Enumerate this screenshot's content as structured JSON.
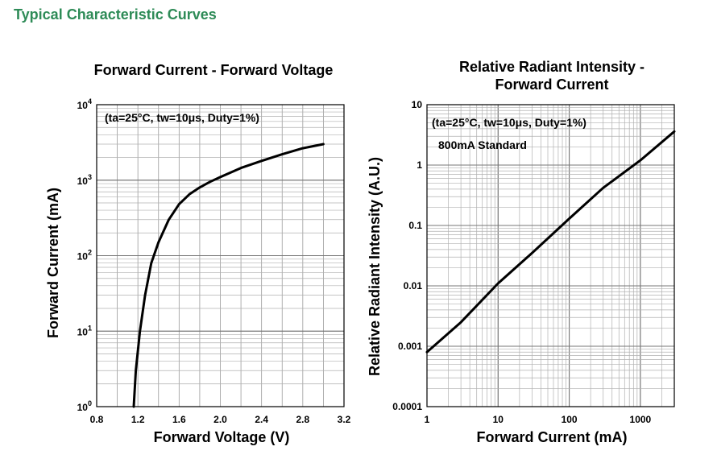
{
  "page": {
    "section_title": "Typical Characteristic Curves"
  },
  "chart_data": [
    {
      "type": "line",
      "title": "Forward Current - Forward Voltage",
      "annotation": "(ta=25°C, tw=10μs, Duty=1%)",
      "xlabel": "Forward Voltage (V)",
      "ylabel": "Forward Current (mA)",
      "xlim": [
        0.8,
        3.2
      ],
      "ylim": [
        1,
        10000
      ],
      "yscale": "log",
      "grid": true,
      "xticks": [
        "0.8",
        "1.2",
        "1.6",
        "2.0",
        "2.4",
        "2.8",
        "3.2"
      ],
      "yticks": [
        {
          "base": "10",
          "exp": "0"
        },
        {
          "base": "10",
          "exp": "1"
        },
        {
          "base": "10",
          "exp": "2"
        },
        {
          "base": "10",
          "exp": "3"
        },
        {
          "base": "10",
          "exp": "4"
        }
      ],
      "series": [
        {
          "x": [
            1.16,
            1.18,
            1.22,
            1.27,
            1.33,
            1.4,
            1.5,
            1.6,
            1.7,
            1.8,
            1.9,
            2.0,
            2.2,
            2.4,
            2.6,
            2.8,
            3.0
          ],
          "y": [
            1,
            3,
            10,
            30,
            80,
            150,
            300,
            480,
            650,
            800,
            950,
            1100,
            1450,
            1800,
            2200,
            2650,
            3000
          ]
        }
      ]
    },
    {
      "type": "line",
      "title": "Relative Radiant Intensity - Forward Current",
      "title_lines": [
        "Relative Radiant Intensity -",
        "Forward Current"
      ],
      "annotation": "(ta=25°C, tw=10μs, Duty=1%)",
      "note": "800mA Standard",
      "xlabel": "Forward Current (mA)",
      "ylabel": "Relative Radiant Intensity (A.U.)",
      "xscale": "log",
      "yscale": "log",
      "xlim": [
        1,
        3000
      ],
      "ylim": [
        0.0001,
        10
      ],
      "grid": true,
      "xticks": [
        "1",
        "10",
        "100",
        "1000"
      ],
      "yticks": [
        "0.0001",
        "0.001",
        "0.01",
        "0.1",
        "1",
        "10"
      ],
      "series": [
        {
          "x": [
            1,
            3,
            10,
            30,
            100,
            300,
            1000,
            3000
          ],
          "y": [
            0.0008,
            0.0025,
            0.011,
            0.035,
            0.13,
            0.42,
            1.2,
            3.6
          ]
        }
      ]
    }
  ]
}
